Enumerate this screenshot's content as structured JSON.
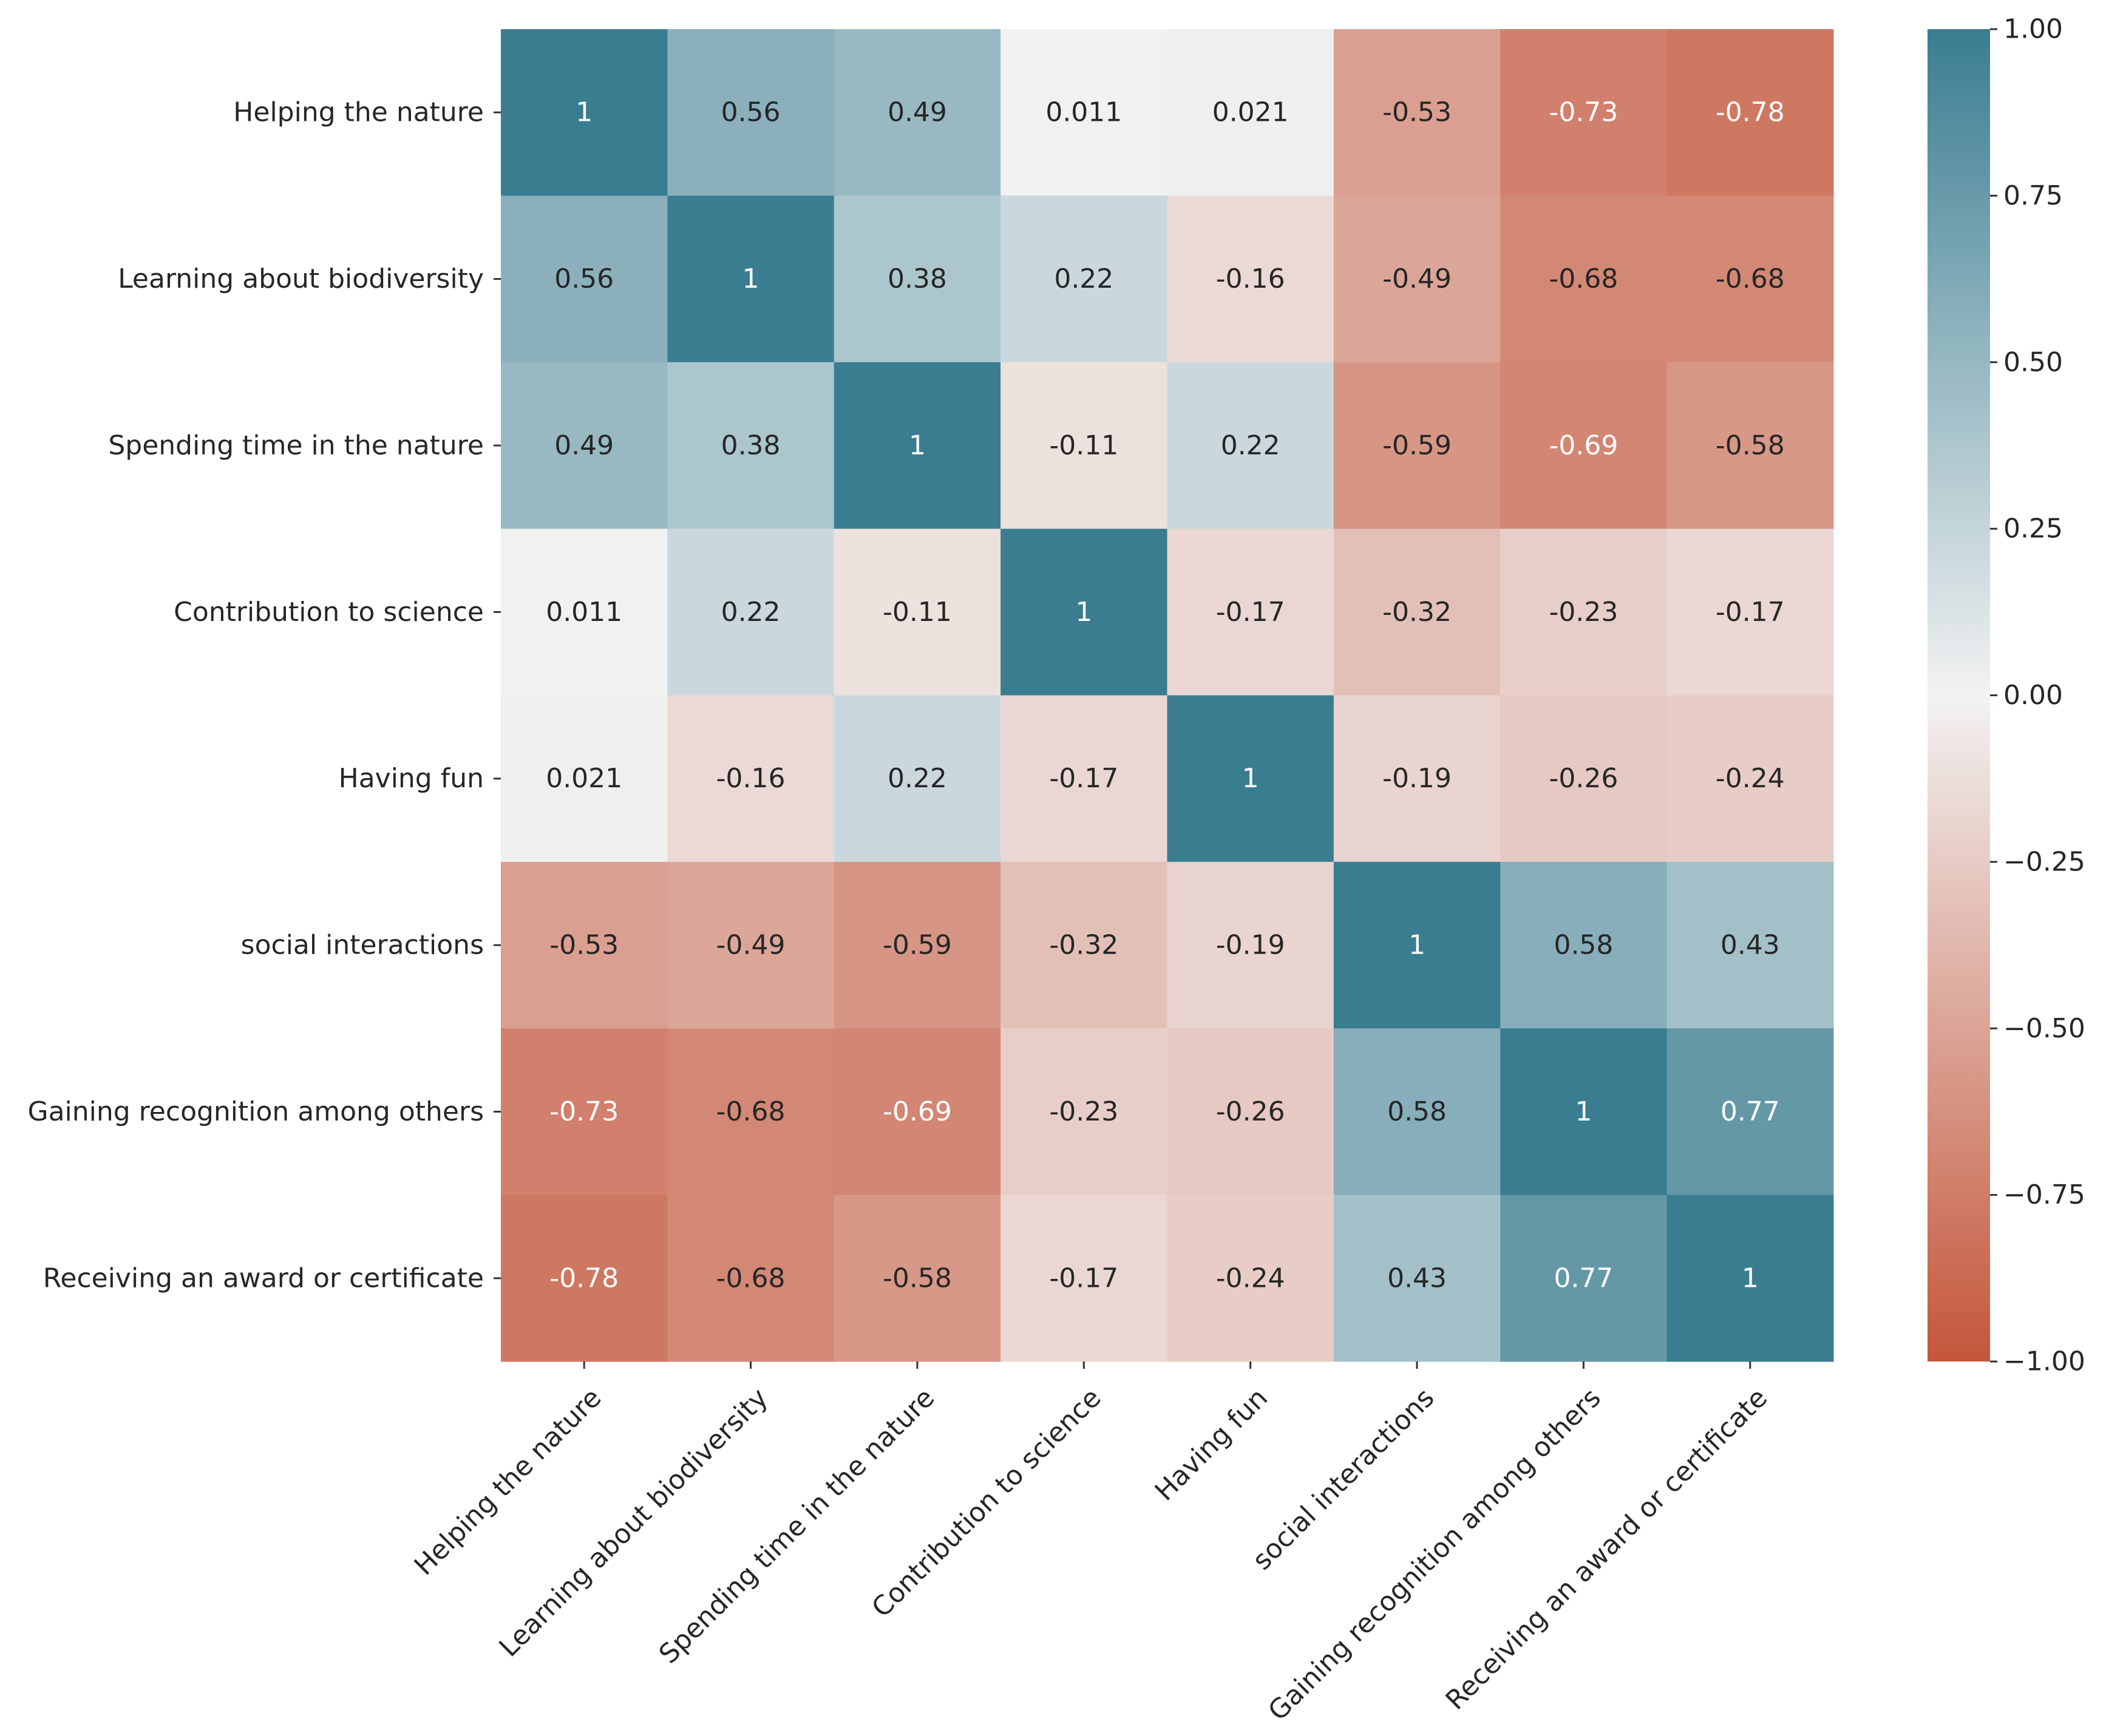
{
  "chart_data": {
    "type": "heatmap",
    "title": "",
    "xlabel": "",
    "ylabel": "",
    "labels": [
      "Helping the nature",
      "Learning about biodiversity",
      "Spending time in the nature",
      "Contribution to science",
      "Having fun",
      "social interactions",
      "Gaining recognition among others",
      "Receiving an award or certificate"
    ],
    "cell_labels": [
      [
        "1",
        "0.56",
        "0.49",
        "0.011",
        "0.021",
        "-0.53",
        "-0.73",
        "-0.78"
      ],
      [
        "0.56",
        "1",
        "0.38",
        "0.22",
        "-0.16",
        "-0.49",
        "-0.68",
        "-0.68"
      ],
      [
        "0.49",
        "0.38",
        "1",
        "-0.11",
        "0.22",
        "-0.59",
        "-0.69",
        "-0.58"
      ],
      [
        "0.011",
        "0.22",
        "-0.11",
        "1",
        "-0.17",
        "-0.32",
        "-0.23",
        "-0.17"
      ],
      [
        "0.021",
        "-0.16",
        "0.22",
        "-0.17",
        "1",
        "-0.19",
        "-0.26",
        "-0.24"
      ],
      [
        "-0.53",
        "-0.49",
        "-0.59",
        "-0.32",
        "-0.19",
        "1",
        "0.58",
        "0.43"
      ],
      [
        "-0.73",
        "-0.68",
        "-0.69",
        "-0.23",
        "-0.26",
        "0.58",
        "1",
        "0.77"
      ],
      [
        "-0.78",
        "-0.68",
        "-0.58",
        "-0.17",
        "-0.24",
        "0.43",
        "0.77",
        "1"
      ]
    ],
    "values": [
      [
        1,
        0.56,
        0.49,
        0.011,
        0.021,
        -0.53,
        -0.73,
        -0.78
      ],
      [
        0.56,
        1,
        0.38,
        0.22,
        -0.16,
        -0.49,
        -0.68,
        -0.68
      ],
      [
        0.49,
        0.38,
        1,
        -0.11,
        0.22,
        -0.59,
        -0.69,
        -0.58
      ],
      [
        0.011,
        0.22,
        -0.11,
        1,
        -0.17,
        -0.32,
        -0.23,
        -0.17
      ],
      [
        0.021,
        -0.16,
        0.22,
        -0.17,
        1,
        -0.19,
        -0.26,
        -0.24
      ],
      [
        -0.53,
        -0.49,
        -0.59,
        -0.32,
        -0.19,
        1,
        0.58,
        0.43
      ],
      [
        -0.73,
        -0.68,
        -0.69,
        -0.23,
        -0.26,
        0.58,
        1,
        0.77
      ],
      [
        -0.78,
        -0.68,
        -0.58,
        -0.17,
        -0.24,
        0.43,
        0.77,
        1
      ]
    ],
    "vmin": -1.0,
    "vmax": 1.0,
    "colorbar": {
      "ticks": [
        1.0,
        0.75,
        0.5,
        0.25,
        0.0,
        -0.25,
        -0.5,
        -0.75,
        -1.0
      ],
      "tick_labels": [
        "1.00",
        "0.75",
        "0.50",
        "0.25",
        "0.00",
        "−0.25",
        "−0.50",
        "−0.75",
        "−1.00"
      ]
    },
    "colormap": {
      "negative": "#c4563a",
      "neutral": "#f2f2f2",
      "positive": "#3a7d91"
    },
    "annotation_colors": {
      "dark": "#262626",
      "light": "#ffffff"
    }
  }
}
